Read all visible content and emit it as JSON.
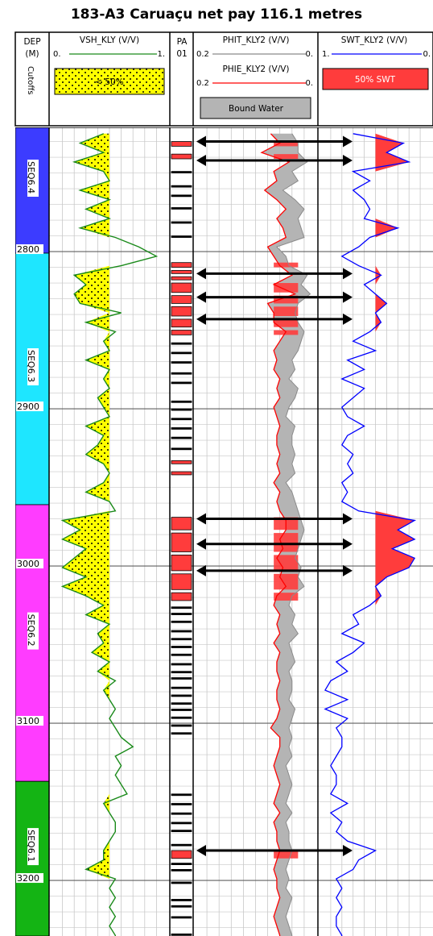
{
  "title": "183-A3 Caruaçu net pay 116.1 metres",
  "headers": {
    "depth": {
      "line1": "DEP",
      "line2": "(M)",
      "cutoffs": "Cutoffs"
    },
    "vsh": {
      "name": "VSH_KLY (V/V)",
      "left": "0.",
      "right": "1.",
      "fill_label": "< 50%"
    },
    "pay_flag": {
      "line1": "PA",
      "line2": "01"
    },
    "phit": {
      "name": "PHIT_KLY2 (V/V)",
      "left": "0.2",
      "right": "0."
    },
    "phie": {
      "name": "PHIE_KLY2 (V/V)",
      "left": "0.2",
      "right": "0.",
      "fill_label": "Bound Water"
    },
    "swt": {
      "name": "SWT_KLY2 (V/V)",
      "left": "1.",
      "right": "0.",
      "fill_label": "50% SWT"
    }
  },
  "colors": {
    "vsh_curve": "#1a8a1a",
    "vsh_fill": "#ffff00",
    "phit_curve": "#8a8a8a",
    "bound_water": "#b4b4b4",
    "phie_curve": "#ff0000",
    "swt_curve": "#0000ff",
    "pay_fill": "#ff3c3c",
    "SEQ6.4": "#3c3cff",
    "SEQ6.3": "#1ee6ff",
    "SEQ6.2": "#ff3cff",
    "SEQ6.1": "#14b414"
  },
  "chart_data": {
    "type": "well-log",
    "depth_unit": "M",
    "depth_range": [
      2721,
      3244
    ],
    "depth_ticks": [
      2800,
      2900,
      3000,
      3100,
      3200
    ],
    "zones": [
      {
        "name": "SEQ6.4",
        "top": 2721,
        "base": 2801
      },
      {
        "name": "SEQ6.3",
        "top": 2801,
        "base": 2961
      },
      {
        "name": "SEQ6.2",
        "top": 2961,
        "base": 3137
      },
      {
        "name": "SEQ6.1",
        "top": 3137,
        "base": 3244
      }
    ],
    "tracks": [
      {
        "curve": "VSH_KLY",
        "unit": "V/V",
        "range": [
          0,
          1
        ],
        "cutoff": 0.5
      },
      {
        "curve": "PA01",
        "unit": "flag"
      },
      {
        "curve": "PHIT_KLY2",
        "unit": "V/V",
        "range": [
          0.2,
          0
        ]
      },
      {
        "curve": "PHIE_KLY2",
        "unit": "V/V",
        "range": [
          0.2,
          0
        ]
      },
      {
        "curve": "SWT_KLY2",
        "unit": "V/V",
        "range": [
          1,
          0
        ],
        "cutoff": 0.5
      }
    ],
    "net_pay_m": 116.1,
    "pay_flag_intervals": [
      [
        2730,
        2733
      ],
      [
        2738,
        2741
      ],
      [
        2749,
        2750
      ],
      [
        2758,
        2759
      ],
      [
        2764,
        2765
      ],
      [
        2772,
        2773
      ],
      [
        2781,
        2782
      ],
      [
        2790,
        2791
      ],
      [
        2807,
        2810
      ],
      [
        2812,
        2814
      ],
      [
        2816,
        2818
      ],
      [
        2820,
        2826
      ],
      [
        2828,
        2833
      ],
      [
        2835,
        2841
      ],
      [
        2843,
        2848
      ],
      [
        2850,
        2853
      ],
      [
        2858,
        2859
      ],
      [
        2864,
        2865
      ],
      [
        2870,
        2871
      ],
      [
        2877,
        2878
      ],
      [
        2883,
        2884
      ],
      [
        2895,
        2896
      ],
      [
        2900,
        2901
      ],
      [
        2906,
        2907
      ],
      [
        2912,
        2913
      ],
      [
        2918,
        2919
      ],
      [
        2925,
        2926
      ],
      [
        2933,
        2935
      ],
      [
        2940,
        2942
      ],
      [
        2969,
        2977
      ],
      [
        2979,
        2991
      ],
      [
        2993,
        3003
      ],
      [
        3005,
        3015
      ],
      [
        3017,
        3022
      ],
      [
        3026,
        3027
      ],
      [
        3030,
        3031
      ],
      [
        3035,
        3036
      ],
      [
        3041,
        3042
      ],
      [
        3046,
        3047
      ],
      [
        3051,
        3052
      ],
      [
        3056,
        3057
      ],
      [
        3062,
        3063
      ],
      [
        3067,
        3068
      ],
      [
        3071,
        3072
      ],
      [
        3077,
        3078
      ],
      [
        3082,
        3083
      ],
      [
        3087,
        3088
      ],
      [
        3091,
        3092
      ],
      [
        3096,
        3097
      ],
      [
        3101,
        3102
      ],
      [
        3106,
        3107
      ],
      [
        3145,
        3146
      ],
      [
        3151,
        3152
      ],
      [
        3157,
        3158
      ],
      [
        3163,
        3164
      ],
      [
        3168,
        3169
      ],
      [
        3177,
        3178
      ],
      [
        3181,
        3186
      ],
      [
        3189,
        3190
      ],
      [
        3193,
        3194
      ],
      [
        3201,
        3202
      ],
      [
        3212,
        3213
      ],
      [
        3216,
        3217
      ],
      [
        3223,
        3224
      ],
      [
        3234,
        3235
      ]
    ],
    "pay_arrows": [
      2730,
      2742,
      2814,
      2829,
      2843,
      2970,
      2986,
      3003,
      3181
    ],
    "curve_depths": [
      2725,
      2731,
      2737,
      2743,
      2749,
      2755,
      2761,
      2767,
      2773,
      2779,
      2785,
      2791,
      2797,
      2803,
      2809,
      2815,
      2821,
      2827,
      2833,
      2839,
      2845,
      2851,
      2857,
      2863,
      2869,
      2875,
      2881,
      2887,
      2893,
      2899,
      2905,
      2911,
      2917,
      2923,
      2929,
      2935,
      2941,
      2947,
      2953,
      2959,
      2965,
      2971,
      2977,
      2983,
      2989,
      2995,
      3001,
      3007,
      3013,
      3019,
      3025,
      3031,
      3037,
      3043,
      3049,
      3055,
      3061,
      3067,
      3073,
      3079,
      3085,
      3091,
      3097,
      3103,
      3109,
      3115,
      3121,
      3127,
      3133,
      3139,
      3145,
      3151,
      3157,
      3163,
      3169,
      3175,
      3181,
      3187,
      3193,
      3199,
      3205,
      3211,
      3217,
      3223,
      3229,
      3235,
      3241
    ],
    "VSH_KLY": [
      0.45,
      0.25,
      0.45,
      0.2,
      0.45,
      0.5,
      0.25,
      0.5,
      0.3,
      0.5,
      0.25,
      0.55,
      0.75,
      0.9,
      0.6,
      0.2,
      0.3,
      0.2,
      0.25,
      0.6,
      0.3,
      0.55,
      0.45,
      0.5,
      0.3,
      0.5,
      0.45,
      0.5,
      0.4,
      0.45,
      0.5,
      0.3,
      0.45,
      0.4,
      0.3,
      0.45,
      0.5,
      0.45,
      0.3,
      0.5,
      0.55,
      0.1,
      0.25,
      0.1,
      0.3,
      0.2,
      0.1,
      0.3,
      0.1,
      0.3,
      0.45,
      0.3,
      0.5,
      0.4,
      0.45,
      0.35,
      0.5,
      0.4,
      0.55,
      0.45,
      0.5,
      0.55,
      0.5,
      0.55,
      0.6,
      0.7,
      0.55,
      0.6,
      0.55,
      0.6,
      0.65,
      0.45,
      0.5,
      0.55,
      0.55,
      0.5,
      0.45,
      0.45,
      0.3,
      0.55,
      0.5,
      0.55,
      0.5,
      0.55,
      0.5,
      0.55,
      0.55
    ],
    "PHIT_KLY2": [
      0.04,
      0.03,
      0.03,
      0.015,
      0.04,
      0.03,
      0.055,
      0.035,
      0.02,
      0.03,
      0.025,
      0.02,
      0.065,
      0.05,
      0.045,
      0.015,
      0.025,
      0.01,
      0.03,
      0.035,
      0.03,
      0.02,
      0.025,
      0.03,
      0.04,
      0.035,
      0.045,
      0.03,
      0.035,
      0.045,
      0.05,
      0.035,
      0.04,
      0.04,
      0.035,
      0.04,
      0.035,
      0.05,
      0.04,
      0.035,
      0.03,
      0.025,
      0.02,
      0.025,
      0.03,
      0.035,
      0.025,
      0.03,
      0.02,
      0.04,
      0.045,
      0.035,
      0.04,
      0.03,
      0.045,
      0.04,
      0.035,
      0.045,
      0.04,
      0.04,
      0.045,
      0.035,
      0.04,
      0.045,
      0.04,
      0.045,
      0.04,
      0.05,
      0.045,
      0.04,
      0.045,
      0.05,
      0.04,
      0.05,
      0.045,
      0.045,
      0.04,
      0.045,
      0.05,
      0.045,
      0.05,
      0.04,
      0.045,
      0.05,
      0.045,
      0.04,
      0.045
    ],
    "PHIE_KLY2": [
      0.075,
      0.06,
      0.09,
      0.045,
      0.07,
      0.065,
      0.085,
      0.065,
      0.05,
      0.065,
      0.055,
      0.05,
      0.08,
      0.07,
      0.06,
      0.04,
      0.07,
      0.035,
      0.08,
      0.07,
      0.07,
      0.05,
      0.06,
      0.07,
      0.065,
      0.07,
      0.06,
      0.065,
      0.06,
      0.07,
      0.065,
      0.06,
      0.065,
      0.065,
      0.06,
      0.065,
      0.06,
      0.07,
      0.06,
      0.065,
      0.06,
      0.05,
      0.05,
      0.06,
      0.055,
      0.065,
      0.055,
      0.06,
      0.05,
      0.065,
      0.07,
      0.06,
      0.065,
      0.06,
      0.07,
      0.06,
      0.065,
      0.065,
      0.06,
      0.065,
      0.065,
      0.06,
      0.065,
      0.075,
      0.06,
      0.06,
      0.065,
      0.07,
      0.065,
      0.06,
      0.065,
      0.07,
      0.06,
      0.07,
      0.065,
      0.065,
      0.06,
      0.065,
      0.07,
      0.065,
      0.065,
      0.06,
      0.065,
      0.07,
      0.065,
      0.06,
      0.065
    ],
    "SWT_KLY2": [
      0.7,
      0.25,
      0.4,
      0.2,
      0.7,
      0.55,
      0.7,
      0.6,
      0.55,
      0.6,
      0.3,
      0.55,
      0.65,
      0.8,
      0.65,
      0.45,
      0.6,
      0.5,
      0.4,
      0.5,
      0.45,
      0.55,
      0.7,
      0.5,
      0.75,
      0.6,
      0.8,
      0.6,
      0.7,
      0.8,
      0.75,
      0.6,
      0.75,
      0.8,
      0.7,
      0.75,
      0.7,
      0.8,
      0.75,
      0.8,
      0.65,
      0.15,
      0.3,
      0.15,
      0.35,
      0.15,
      0.2,
      0.4,
      0.5,
      0.45,
      0.55,
      0.7,
      0.65,
      0.8,
      0.6,
      0.7,
      0.85,
      0.75,
      0.9,
      0.95,
      0.75,
      0.95,
      0.75,
      0.85,
      0.8,
      0.8,
      0.85,
      0.9,
      0.85,
      0.85,
      0.9,
      0.75,
      0.9,
      0.8,
      0.85,
      0.75,
      0.5,
      0.65,
      0.7,
      0.85,
      0.8,
      0.85,
      0.8,
      0.85,
      0.85,
      0.8,
      0.85
    ]
  }
}
